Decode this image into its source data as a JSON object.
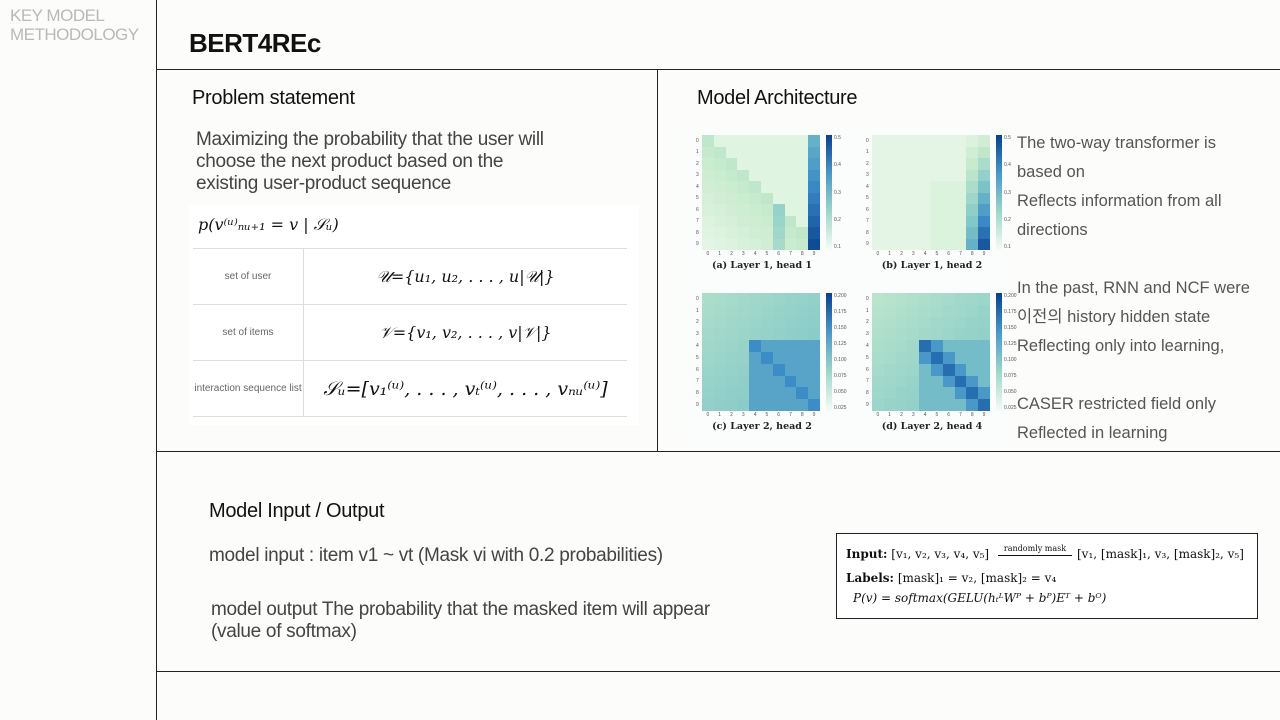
{
  "sidebar": {
    "title_line1": "KEY MODEL",
    "title_line2": "METHODOLOGY"
  },
  "page": {
    "title": "BERT4REc"
  },
  "problem": {
    "title": "Problem statement",
    "text_lines": [
      "Maximizing the probability that the user will",
      "choose the next product based on the",
      "existing user-product sequence"
    ],
    "formula_head": "p(v⁽ᵘ⁾ₙᵤ₊₁ = v | 𝒮ᵤ)",
    "rows": [
      {
        "label": "set of user",
        "formula": "𝒰={u₁, u₂, . . . , u|𝒰|}"
      },
      {
        "label": "set of items",
        "formula": "𝒱={v₁, v₂, . . . , v|𝒱|}"
      },
      {
        "label": "interaction sequence list",
        "formula": "𝒮ᵤ=[v₁⁽ᵘ⁾, . . . , vₜ⁽ᵘ⁾, . . . , vₙᵤ⁽ᵘ⁾]"
      }
    ]
  },
  "architecture": {
    "title": "Model Architecture",
    "heatmap_captions": [
      "(a) Layer 1, head 1",
      "(b) Layer 1, head 2",
      "(c) Layer 2, head 2",
      "(d) Layer 2, head 4"
    ],
    "heatmap_axis_ticks": [
      "0",
      "1",
      "2",
      "3",
      "4",
      "5",
      "6",
      "7",
      "8",
      "9"
    ],
    "colorbar_ticks_top": [
      "0.5",
      "0.4",
      "0.3",
      "0.2",
      "0.1"
    ],
    "colorbar_ticks_bottom": [
      "0.200",
      "0.175",
      "0.150",
      "0.125",
      "0.100",
      "0.075",
      "0.050",
      "0.025"
    ],
    "text": {
      "p1_line1": "The two-way transformer is",
      "p1_line2": "based on",
      "p1_line3": "Reflects information from all",
      "p1_line4": "directions",
      "p2_line1": "In the past, RNN and NCF were",
      "p2_line2": "이전의 history hidden state",
      "p2_line3": "Reflecting only into learning,",
      "p3_line1": "CASER restricted field only",
      "p3_line2": "Reflected in learning"
    }
  },
  "io": {
    "title": "Model Input / Output",
    "input_text": "model input : item v1 ~ vt (Mask vi with 0.2 probabilities)",
    "output_line1": "model output The probability that the masked item will appear",
    "output_line2": "(value of softmax)",
    "box": {
      "input_label": "Input:",
      "input_seq": "[v₁, v₂, v₃, v₄, v₅]",
      "arrow_label": "randomly mask",
      "masked_seq": "[v₁, [mask]₁, v₃, [mask]₂, v₅]",
      "labels_label": "Labels:",
      "labels_value": "[mask]₁ = v₂,    [mask]₂ = v₄",
      "formula": "P(v) = softmax(GELU(hₜᴸWᴾ + bᴾ)Eᵀ + bᴼ)"
    }
  }
}
